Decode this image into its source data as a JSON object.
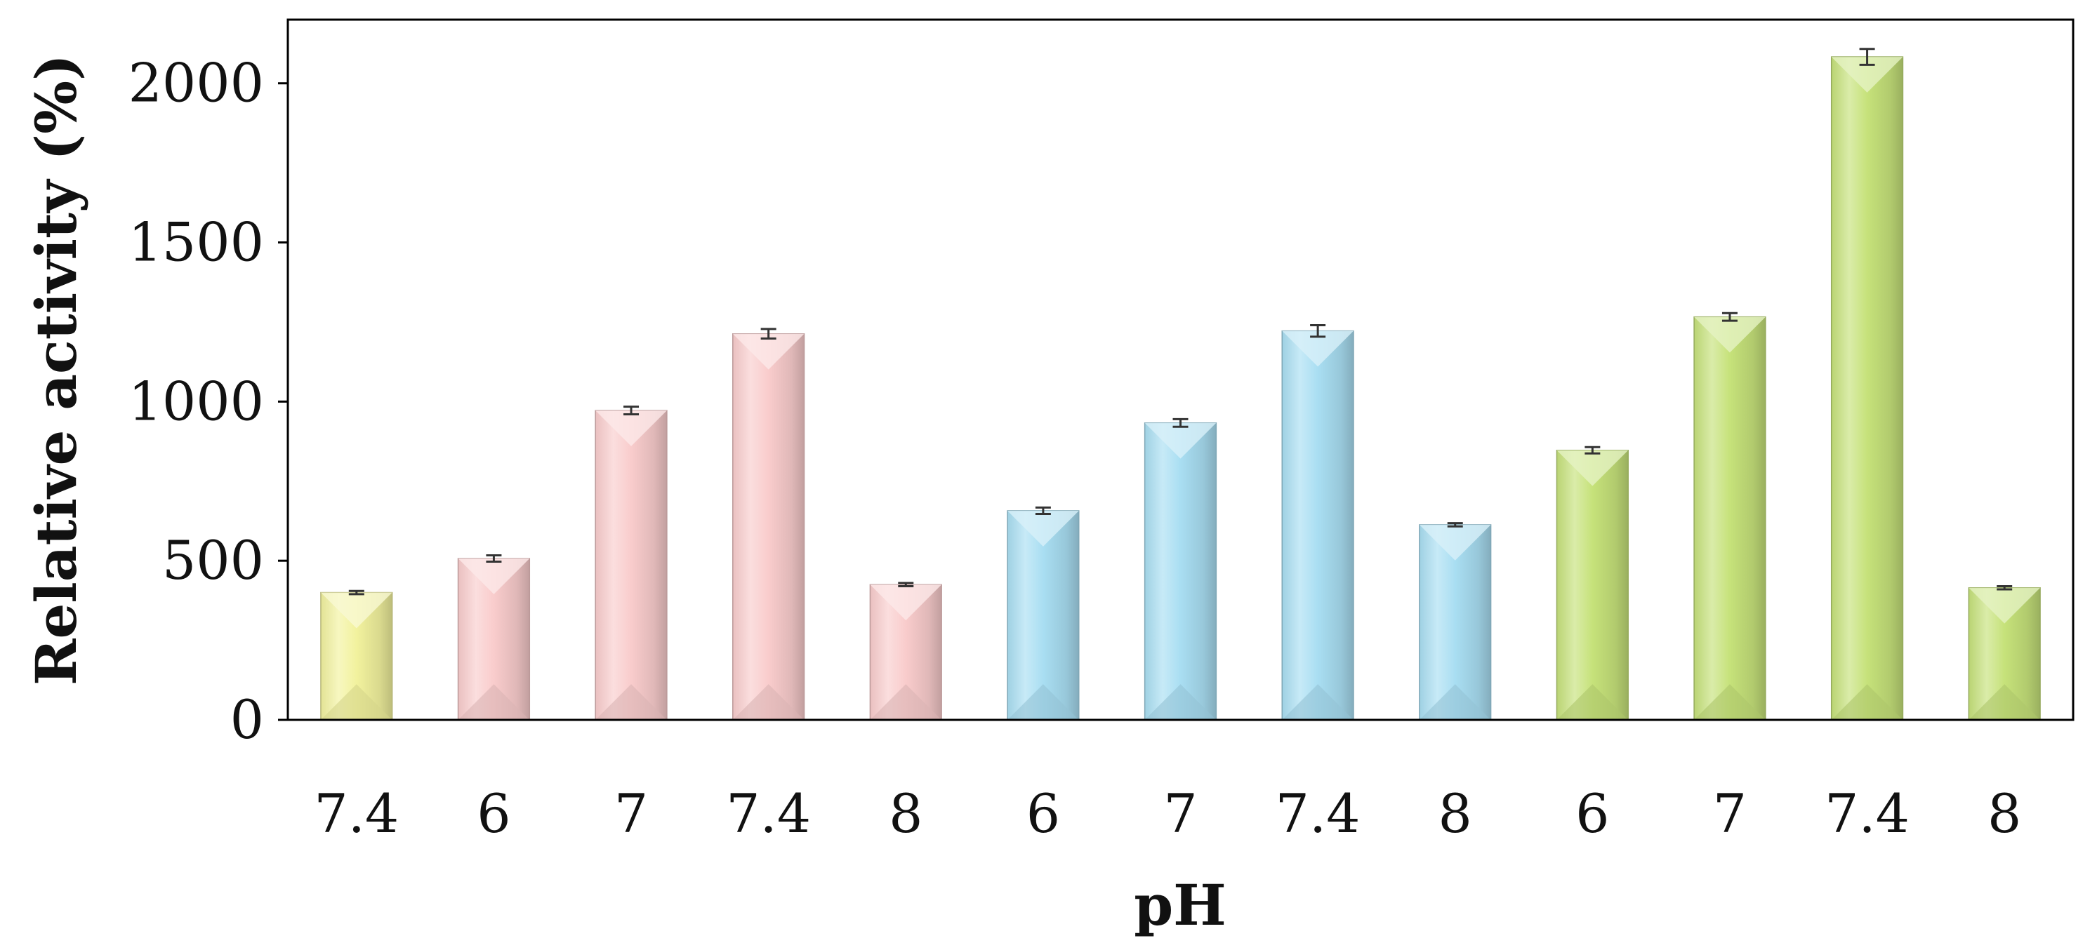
{
  "chart_data": {
    "type": "bar",
    "title": "",
    "xlabel": "pH",
    "ylabel": "Relative activity (%)",
    "categories": [
      "7.4",
      "6",
      "7",
      "7.4",
      "8",
      "6",
      "7",
      "7.4",
      "8",
      "6",
      "7",
      "7.4",
      "8"
    ],
    "values": [
      400,
      507,
      972,
      1213,
      425,
      657,
      933,
      1222,
      613,
      847,
      1266,
      2083,
      415
    ],
    "errors": [
      5,
      10,
      12,
      15,
      5,
      10,
      12,
      18,
      5,
      10,
      12,
      25,
      5
    ],
    "bar_colors": [
      "#f2f29e",
      "#f9cccc",
      "#f9cccc",
      "#f9cccc",
      "#f9cccc",
      "#a9def2",
      "#a9def2",
      "#a9def2",
      "#a9def2",
      "#c6e27a",
      "#c6e27a",
      "#c6e27a",
      "#c6e27a"
    ],
    "ylim": [
      0,
      2000
    ],
    "yaxis_max": 2200,
    "yticks": [
      0,
      500,
      1000,
      1500,
      2000
    ],
    "grid": false,
    "legend": "none"
  }
}
